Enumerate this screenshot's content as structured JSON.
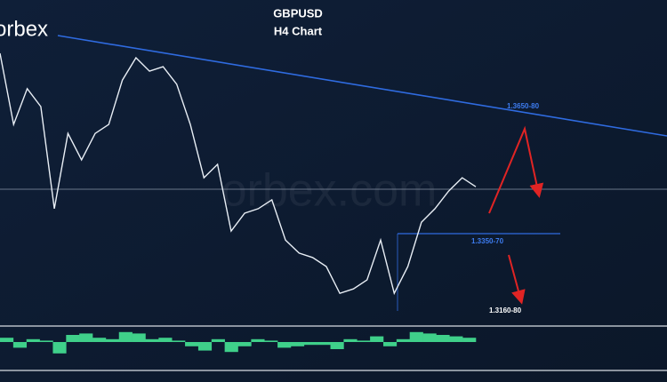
{
  "brand": "orbex",
  "watermark": "orbex.com",
  "chart_data": [
    {
      "type": "line",
      "title": "GBPUSD",
      "subtitle": "H4 Chart",
      "categories": [
        null,
        null,
        null,
        null,
        null,
        null,
        null,
        null,
        null,
        null,
        null,
        null,
        null,
        null,
        null,
        null,
        null,
        null,
        null,
        null,
        null,
        null,
        null,
        null,
        null,
        null,
        null,
        null,
        null,
        null,
        null,
        null,
        null,
        null,
        null,
        null
      ],
      "values": [
        1.3793,
        1.3618,
        1.3706,
        1.3662,
        1.3411,
        1.3596,
        1.3531,
        1.3596,
        1.3618,
        1.3727,
        1.3782,
        1.3749,
        1.376,
        1.3717,
        1.3618,
        1.3487,
        1.352,
        1.3356,
        1.34,
        1.3411,
        1.3433,
        1.3334,
        1.3302,
        1.3291,
        1.3269,
        1.3203,
        1.3214,
        1.3236,
        1.3334,
        1.3203,
        1.3269,
        1.3378,
        1.3411,
        1.3454,
        1.3487,
        1.3465
      ],
      "color": "#e8eef5",
      "ylim": [
        1.3127,
        1.3924
      ],
      "annotations": [
        "1.3650-80",
        "1.3350-70",
        "1.3160-80"
      ]
    },
    {
      "type": "bar",
      "categories": [
        null,
        null,
        null,
        null,
        null,
        null,
        null,
        null,
        null,
        null,
        null,
        null,
        null,
        null,
        null,
        null,
        null,
        null,
        null,
        null,
        null,
        null,
        null,
        null,
        null,
        null,
        null,
        null,
        null,
        null,
        null,
        null,
        null,
        null,
        null,
        null
      ],
      "values": [
        0.3,
        -0.4,
        0.2,
        0.1,
        -0.8,
        0.5,
        0.6,
        0.3,
        0.2,
        0.7,
        0.6,
        0.2,
        0.3,
        0.1,
        -0.3,
        -0.6,
        0.2,
        -0.7,
        -0.3,
        0.2,
        0.1,
        -0.4,
        -0.3,
        -0.2,
        -0.2,
        -0.5,
        0.2,
        0.1,
        0.4,
        -0.3,
        0.2,
        0.7,
        0.6,
        0.5,
        0.4,
        0.3
      ],
      "color": "#3fd08a",
      "ylim": [
        -1,
        1
      ]
    }
  ]
}
